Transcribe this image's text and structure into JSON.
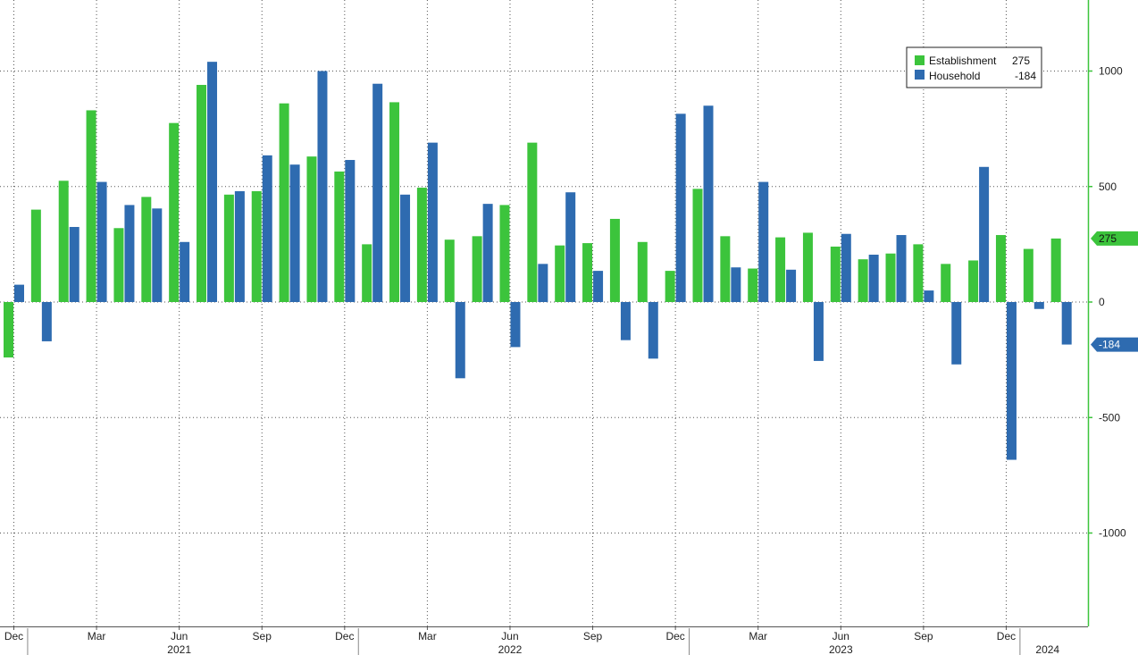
{
  "chart_data": {
    "type": "bar",
    "grid": true,
    "legend_placement": "top-right",
    "ylim": [
      -1300,
      1300
    ],
    "y_ticks": [
      1000,
      500,
      0,
      -500,
      -1000
    ],
    "y_tick_labels": [
      "1000",
      "500",
      "0",
      "-500",
      "-1000"
    ],
    "month_tick_labels": [
      "Dec",
      "Mar",
      "Jun",
      "Sep",
      "Dec",
      "Mar",
      "Jun",
      "Sep",
      "Dec",
      "Mar",
      "Jun",
      "Sep",
      "Dec"
    ],
    "month_tick_index": [
      0,
      3,
      6,
      9,
      12,
      15,
      18,
      21,
      24,
      27,
      30,
      33,
      36
    ],
    "year_labels": [
      {
        "label": "2021",
        "center_index": 6
      },
      {
        "label": "2022",
        "center_index": 18
      },
      {
        "label": "2023",
        "center_index": 30
      },
      {
        "label": "2024",
        "center_index": 37.5
      }
    ],
    "year_boundaries": [
      0.5,
      12.5,
      24.5,
      36.5
    ],
    "categories": [
      "Dec 2020",
      "Jan 2021",
      "Feb 2021",
      "Mar 2021",
      "Apr 2021",
      "May 2021",
      "Jun 2021",
      "Jul 2021",
      "Aug 2021",
      "Sep 2021",
      "Oct 2021",
      "Nov 2021",
      "Dec 2021",
      "Jan 2022",
      "Feb 2022",
      "Mar 2022",
      "Apr 2022",
      "May 2022",
      "Jun 2022",
      "Jul 2022",
      "Aug 2022",
      "Sep 2022",
      "Oct 2022",
      "Nov 2022",
      "Dec 2022",
      "Jan 2023",
      "Feb 2023",
      "Mar 2023",
      "Apr 2023",
      "May 2023",
      "Jun 2023",
      "Jul 2023",
      "Aug 2023",
      "Sep 2023",
      "Oct 2023",
      "Nov 2023",
      "Dec 2023",
      "Jan 2024",
      "Feb 2024"
    ],
    "series": [
      {
        "name": "Establishment",
        "color": "#3cc43c",
        "last_value_label": "275",
        "values": [
          -240,
          400,
          525,
          830,
          320,
          455,
          775,
          940,
          465,
          480,
          860,
          630,
          565,
          250,
          865,
          495,
          270,
          285,
          420,
          690,
          245,
          255,
          360,
          260,
          135,
          490,
          285,
          145,
          280,
          300,
          240,
          185,
          210,
          250,
          165,
          180,
          290,
          230,
          275
        ]
      },
      {
        "name": "Household",
        "color": "#2e6bb0",
        "last_value_label": "-184",
        "values": [
          75,
          -170,
          325,
          520,
          420,
          405,
          260,
          1040,
          480,
          635,
          595,
          1000,
          615,
          945,
          465,
          690,
          -330,
          425,
          -195,
          165,
          475,
          135,
          -165,
          -245,
          815,
          850,
          150,
          520,
          140,
          -255,
          295,
          205,
          290,
          50,
          -270,
          585,
          -683,
          -30,
          -184
        ]
      }
    ]
  }
}
